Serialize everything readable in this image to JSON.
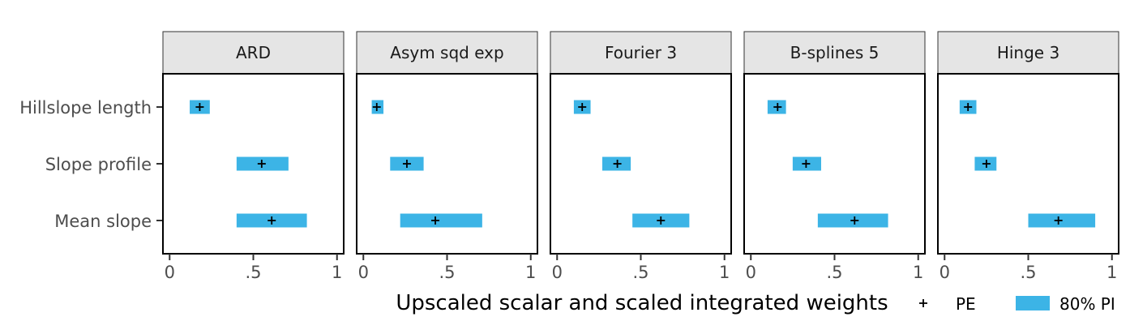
{
  "chart_data": {
    "type": "interval",
    "xlabel": "Upscaled scalar and scaled integrated weights",
    "xlim": [
      -0.04,
      1.04
    ],
    "xticks": [
      0,
      0.5,
      1
    ],
    "xtick_labels": [
      "0",
      ".5",
      "1"
    ],
    "categories": [
      "Hillslope length",
      "Slope profile",
      "Mean slope"
    ],
    "legend": {
      "position": "bottom-right",
      "items": [
        {
          "label": "PE",
          "marker": "+"
        },
        {
          "label": "80% PI",
          "marker": "bar"
        }
      ]
    },
    "colors": {
      "interval": "#3cb4e6",
      "strip": "#e5e5e5",
      "text": "#4d4d4d"
    },
    "facets": [
      {
        "title": "ARD",
        "points": [
          {
            "category": "Hillslope length",
            "pe": 0.18,
            "lo": 0.12,
            "hi": 0.24
          },
          {
            "category": "Slope profile",
            "pe": 0.55,
            "lo": 0.4,
            "hi": 0.71
          },
          {
            "category": "Mean slope",
            "pe": 0.61,
            "lo": 0.4,
            "hi": 0.82
          }
        ]
      },
      {
        "title": "Asym sqd exp",
        "points": [
          {
            "category": "Hillslope length",
            "pe": 0.08,
            "lo": 0.05,
            "hi": 0.12
          },
          {
            "category": "Slope profile",
            "pe": 0.26,
            "lo": 0.16,
            "hi": 0.36
          },
          {
            "category": "Mean slope",
            "pe": 0.43,
            "lo": 0.22,
            "hi": 0.71
          }
        ]
      },
      {
        "title": "Fourier 3",
        "points": [
          {
            "category": "Hillslope length",
            "pe": 0.15,
            "lo": 0.1,
            "hi": 0.2
          },
          {
            "category": "Slope profile",
            "pe": 0.36,
            "lo": 0.27,
            "hi": 0.44
          },
          {
            "category": "Mean slope",
            "pe": 0.62,
            "lo": 0.45,
            "hi": 0.79
          }
        ]
      },
      {
        "title": "B-splines 5",
        "points": [
          {
            "category": "Hillslope length",
            "pe": 0.16,
            "lo": 0.1,
            "hi": 0.21
          },
          {
            "category": "Slope profile",
            "pe": 0.33,
            "lo": 0.25,
            "hi": 0.42
          },
          {
            "category": "Mean slope",
            "pe": 0.62,
            "lo": 0.4,
            "hi": 0.82
          }
        ]
      },
      {
        "title": "Hinge 3",
        "points": [
          {
            "category": "Hillslope length",
            "pe": 0.14,
            "lo": 0.09,
            "hi": 0.19
          },
          {
            "category": "Slope profile",
            "pe": 0.25,
            "lo": 0.18,
            "hi": 0.31
          },
          {
            "category": "Mean slope",
            "pe": 0.68,
            "lo": 0.5,
            "hi": 0.9
          }
        ]
      }
    ]
  }
}
